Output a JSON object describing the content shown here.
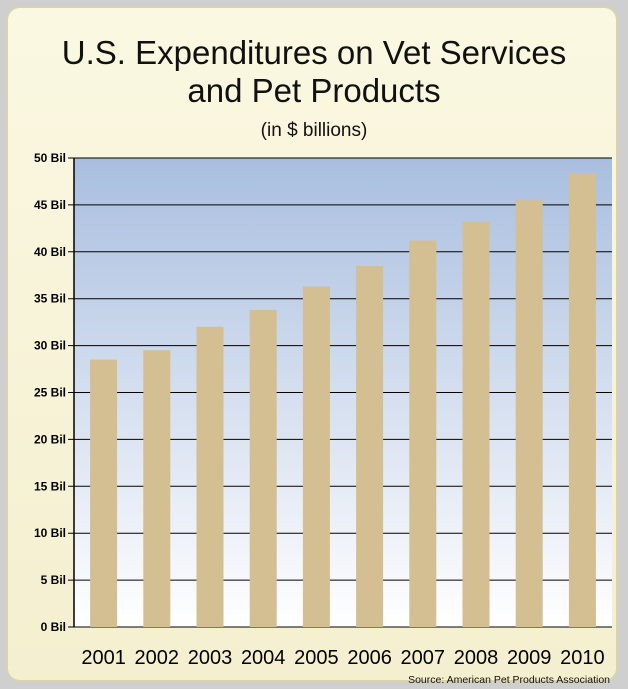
{
  "chart_data": {
    "type": "bar",
    "title": "U.S. Expenditures on Vet Services",
    "title_line2": "and Pet Products",
    "subtitle": "(in $ billions)",
    "source": "Source: American Pet Products Association",
    "categories": [
      "2001",
      "2002",
      "2003",
      "2004",
      "2005",
      "2006",
      "2007",
      "2008",
      "2009",
      "2010"
    ],
    "values": [
      28.5,
      29.5,
      32.0,
      33.8,
      36.3,
      38.5,
      41.2,
      43.2,
      45.5,
      48.4
    ],
    "ylim": [
      0,
      50
    ],
    "yticks": [
      0,
      5,
      10,
      15,
      20,
      25,
      30,
      35,
      40,
      45,
      50
    ],
    "ytick_labels": [
      "0 Bil",
      "5 Bil",
      "10 Bil",
      "15 Bil",
      "20 Bil",
      "25 Bil",
      "30 Bil",
      "35 Bil",
      "40 Bil",
      "45 Bil",
      "50 Bil"
    ],
    "grid": true,
    "bar_color": "#d3bf91",
    "plot_bg_top": "#a9bedf",
    "plot_bg_bottom": "#ffffff"
  }
}
